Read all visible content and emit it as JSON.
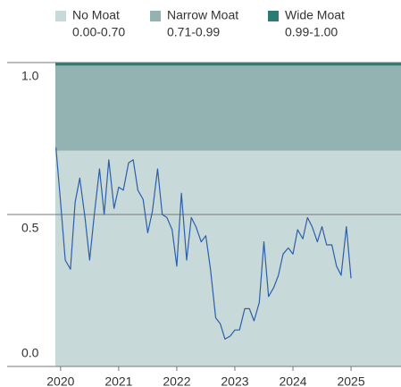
{
  "chart_data": {
    "type": "line",
    "bands": [
      {
        "name": "No Moat",
        "range": "0.00-0.70",
        "color": "#c7d9d9",
        "ylow": 0,
        "yhigh": 0.7
      },
      {
        "name": "Narrow Moat",
        "range": "0.71-0.99",
        "color": "#93b2b2",
        "ylow": 0.71,
        "yhigh": 0.99
      },
      {
        "name": "Wide Moat",
        "range": "0.99-1.00",
        "color": "#2b7b74",
        "ylow": 0.99,
        "yhigh": 1.0
      }
    ],
    "x": [
      2019.92,
      2020.0,
      2020.08,
      2020.17,
      2020.25,
      2020.33,
      2020.42,
      2020.5,
      2020.58,
      2020.67,
      2020.75,
      2020.83,
      2020.92,
      2021.0,
      2021.08,
      2021.17,
      2021.25,
      2021.33,
      2021.42,
      2021.5,
      2021.58,
      2021.67,
      2021.75,
      2021.83,
      2021.92,
      2022.0,
      2022.08,
      2022.17,
      2022.25,
      2022.33,
      2022.42,
      2022.5,
      2022.58,
      2022.67,
      2022.75,
      2022.83,
      2022.92,
      2023.0,
      2023.08,
      2023.17,
      2023.25,
      2023.33,
      2023.42,
      2023.5,
      2023.58,
      2023.67,
      2023.75,
      2023.83,
      2023.92,
      2024.0,
      2024.08,
      2024.17,
      2024.25,
      2024.33,
      2024.42,
      2024.5,
      2024.58,
      2024.67,
      2024.75,
      2024.83,
      2024.92,
      2025.0
    ],
    "series": [
      {
        "color": "#2d5fa8",
        "values": [
          0.72,
          0.54,
          0.35,
          0.32,
          0.54,
          0.62,
          0.49,
          0.35,
          0.5,
          0.65,
          0.5,
          0.68,
          0.52,
          0.59,
          0.58,
          0.67,
          0.68,
          0.58,
          0.55,
          0.44,
          0.51,
          0.65,
          0.5,
          0.49,
          0.45,
          0.33,
          0.57,
          0.35,
          0.49,
          0.46,
          0.41,
          0.43,
          0.32,
          0.16,
          0.14,
          0.09,
          0.1,
          0.12,
          0.12,
          0.19,
          0.19,
          0.15,
          0.21,
          0.41,
          0.23,
          0.26,
          0.3,
          0.37,
          0.39,
          0.37,
          0.45,
          0.42,
          0.49,
          0.46,
          0.41,
          0.46,
          0.4,
          0.4,
          0.33,
          0.3,
          0.46,
          0.29
        ]
      }
    ],
    "xlim": [
      2019.91,
      2025.86
    ],
    "xticks": [
      2020,
      2021,
      2022,
      2023,
      2024,
      2025
    ],
    "ylim": [
      0,
      1.0
    ],
    "yticks": [
      {
        "value": 0,
        "label": "0.0"
      },
      0.5,
      {
        "value": 1,
        "label": "1.0"
      }
    ],
    "grid": true
  }
}
